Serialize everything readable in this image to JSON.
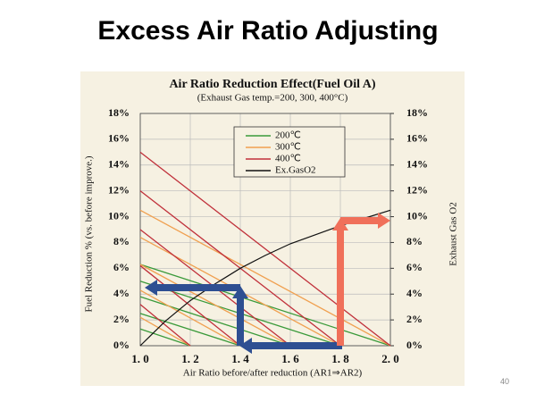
{
  "slide_title": "Excess Air Ratio Adjusting",
  "page_number": "40",
  "chart_data": {
    "type": "line",
    "title": "Air Ratio Reduction Effect(Fuel Oil A)",
    "subtitle": "(Exhaust Gas temp.=200, 300, 400°C)",
    "x_label": "Air Ratio before/after reduction (AR1⇒AR2)",
    "y_label": "Fuel Reduction % (vs. before improve.)",
    "y2_label": "Exhaust Gas O2",
    "xlim": [
      1.0,
      2.0
    ],
    "xticks": [
      {
        "value": 1.0,
        "label": "1. 0"
      },
      {
        "value": 1.2,
        "label": "1. 2"
      },
      {
        "value": 1.4,
        "label": "1. 4"
      },
      {
        "value": 1.6,
        "label": "1. 6"
      },
      {
        "value": 1.8,
        "label": "1. 8"
      },
      {
        "value": 2.0,
        "label": "2. 0"
      }
    ],
    "ylim": [
      0,
      18
    ],
    "yticks": [
      {
        "value": 0,
        "label": "0%"
      },
      {
        "value": 2,
        "label": "2%"
      },
      {
        "value": 4,
        "label": "4%"
      },
      {
        "value": 6,
        "label": "6%"
      },
      {
        "value": 8,
        "label": "8%"
      },
      {
        "value": 10,
        "label": "10%"
      },
      {
        "value": 12,
        "label": "12%"
      },
      {
        "value": 14,
        "label": "14%"
      },
      {
        "value": 16,
        "label": "16%"
      },
      {
        "value": 18,
        "label": "18%"
      }
    ],
    "y2lim": [
      0,
      18
    ],
    "y2ticks": [
      {
        "value": 0,
        "label": "0%"
      },
      {
        "value": 2,
        "label": "2%"
      },
      {
        "value": 4,
        "label": "4%"
      },
      {
        "value": 6,
        "label": "6%"
      },
      {
        "value": 8,
        "label": "8%"
      },
      {
        "value": 10,
        "label": "10%"
      },
      {
        "value": 12,
        "label": "12%"
      },
      {
        "value": 14,
        "label": "14%"
      },
      {
        "value": 16,
        "label": "16%"
      },
      {
        "value": 18,
        "label": "18%"
      }
    ],
    "grid": true,
    "series": [
      {
        "name": "200℃",
        "color": "#3a9a3a",
        "lines": [
          {
            "x": [
              1.0,
              2.0
            ],
            "values": [
              6.3,
              0
            ]
          },
          {
            "x": [
              1.0,
              1.8
            ],
            "values": [
              5.0,
              0
            ]
          },
          {
            "x": [
              1.0,
              1.6
            ],
            "values": [
              3.8,
              0
            ]
          },
          {
            "x": [
              1.0,
              1.4
            ],
            "values": [
              2.5,
              0
            ]
          },
          {
            "x": [
              1.0,
              1.2
            ],
            "values": [
              1.3,
              0
            ]
          }
        ]
      },
      {
        "name": "300℃",
        "color": "#f0a050",
        "lines": [
          {
            "x": [
              1.0,
              2.0
            ],
            "values": [
              10.5,
              0
            ]
          },
          {
            "x": [
              1.0,
              1.8
            ],
            "values": [
              8.4,
              0
            ]
          },
          {
            "x": [
              1.0,
              1.6
            ],
            "values": [
              6.3,
              0
            ]
          },
          {
            "x": [
              1.0,
              1.4
            ],
            "values": [
              4.3,
              0
            ]
          },
          {
            "x": [
              1.0,
              1.2
            ],
            "values": [
              2.2,
              0
            ]
          }
        ]
      },
      {
        "name": "400℃",
        "color": "#c0303a",
        "lines": [
          {
            "x": [
              1.0,
              2.0
            ],
            "values": [
              15,
              0
            ]
          },
          {
            "x": [
              1.0,
              1.8
            ],
            "values": [
              12,
              0
            ]
          },
          {
            "x": [
              1.0,
              1.6
            ],
            "values": [
              9,
              0
            ]
          },
          {
            "x": [
              1.0,
              1.4
            ],
            "values": [
              6.2,
              0
            ]
          },
          {
            "x": [
              1.0,
              1.2
            ],
            "values": [
              3.2,
              0
            ]
          }
        ]
      },
      {
        "name": "Ex.GasO2",
        "color": "#111111",
        "axis": "y2",
        "lines": [
          {
            "x": [
              1.0,
              1.1,
              1.2,
              1.3,
              1.4,
              1.5,
              1.6,
              1.7,
              1.8,
              1.9,
              2.0
            ],
            "values": [
              0,
              1.9,
              3.5,
              4.8,
              6.0,
              7.0,
              7.9,
              8.6,
              9.3,
              9.9,
              10.5
            ]
          }
        ]
      }
    ]
  }
}
